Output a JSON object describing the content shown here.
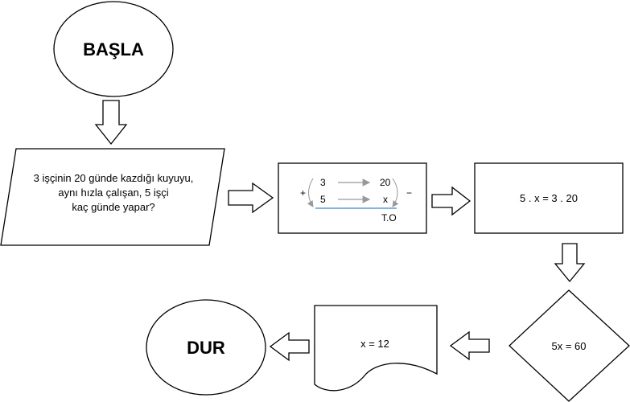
{
  "start": {
    "label": "BAŞLA"
  },
  "end": {
    "label": "DUR"
  },
  "input": {
    "lines": [
      "3 işçinin 20 günde kazdığı kuyuyu,",
      "aynı hızla çalışan, 5 işçi",
      "kaç günde yapar?"
    ]
  },
  "ratio": {
    "row1_left": "3",
    "row1_right": "20",
    "row2_left": "5",
    "row2_right": "x",
    "plus": "+",
    "minus": "−",
    "type": "T.O"
  },
  "equation": {
    "label": "5 . x = 3 . 20"
  },
  "decision": {
    "label": "5x = 60"
  },
  "output": {
    "label": "x = 12"
  }
}
